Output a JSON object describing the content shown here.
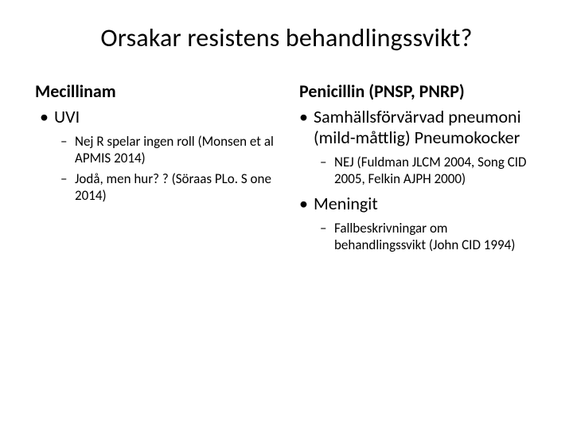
{
  "title": "Orsakar resistens behandlingssvikt?",
  "left": {
    "heading": "Mecillinam",
    "items": [
      {
        "text": "UVI",
        "sub": [
          "Nej R spelar ingen roll (Monsen et al APMIS 2014)",
          "Jodå, men hur? ? (Söraas PLo. S one 2014)"
        ]
      }
    ]
  },
  "right": {
    "heading": "Penicillin (PNSP, PNRP)",
    "items": [
      {
        "text": "Samhällsförvärvad pneumoni (mild-måttlig) Pneumokocker",
        "sub": [
          "NEJ (Fuldman JLCM 2004, Song CID 2005, Felkin AJPH 2000)"
        ]
      },
      {
        "text": "Meningit",
        "sub": [
          "Fallbeskrivningar om behandlingssvikt (John CID 1994)"
        ]
      }
    ]
  }
}
